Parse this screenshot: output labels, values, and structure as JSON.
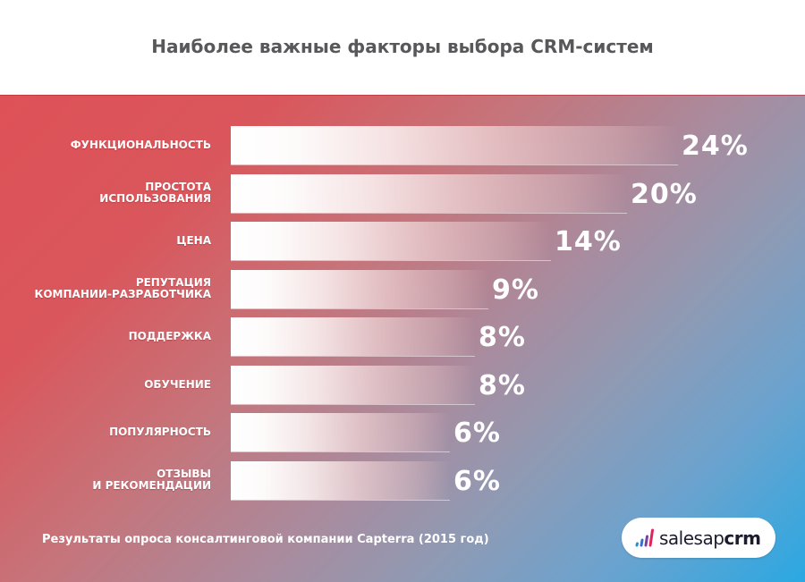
{
  "title": "Наиболее важные факторы выбора CRM-систем",
  "footnote": "Результаты опроса консалтинговой компании Capterra (2015 год)",
  "logo": {
    "text_light": "salesap",
    "text_bold": "crm",
    "icon": "bar-chart-logo-icon",
    "icon_colors": [
      "#2a8fd8",
      "#7b3fa8",
      "#e0245e"
    ]
  },
  "colors": {
    "gradient_start": "#de5157",
    "gradient_end": "#2aa8e2",
    "title": "#58585a",
    "bar": "#ffffff",
    "text": "#ffffff"
  },
  "rows": [
    {
      "label_lines": [
        "ФУНКЦИОНАЛЬНОСТЬ"
      ],
      "value": "24%"
    },
    {
      "label_lines": [
        "ПРОСТОТА",
        "ИСПОЛЬЗОВАНИЯ"
      ],
      "value": "20%"
    },
    {
      "label_lines": [
        "ЦЕНА"
      ],
      "value": "14%"
    },
    {
      "label_lines": [
        "РЕПУТАЦИЯ",
        "КОМПАНИИ-РАЗРАБОТЧИКА"
      ],
      "value": "9%"
    },
    {
      "label_lines": [
        "ПОДДЕРЖКА"
      ],
      "value": "8%"
    },
    {
      "label_lines": [
        "ОБУЧЕНИЕ"
      ],
      "value": "8%"
    },
    {
      "label_lines": [
        "ПОПУЛЯРНОСТЬ"
      ],
      "value": "6%"
    },
    {
      "label_lines": [
        "ОТЗЫВЫ",
        "И РЕКОМЕНДАЦИИ"
      ],
      "value": "6%"
    }
  ],
  "chart_data": {
    "type": "bar",
    "orientation": "horizontal",
    "title": "Наиболее важные факторы выбора CRM-систем",
    "categories": [
      "Функциональность",
      "Простота использования",
      "Цена",
      "Репутация компании-разработчика",
      "Поддержка",
      "Обучение",
      "Популярность",
      "Отзывы и рекомендации"
    ],
    "values": [
      24,
      20,
      14,
      9,
      8,
      8,
      6,
      6
    ],
    "unit": "%",
    "xlabel": "",
    "ylabel": "",
    "grid": false,
    "legend": null,
    "data_labels": [
      "24%",
      "20%",
      "14%",
      "9%",
      "8%",
      "8%",
      "6%",
      "6%"
    ],
    "source": "Результаты опроса консалтинговой компании Capterra (2015 год)"
  }
}
